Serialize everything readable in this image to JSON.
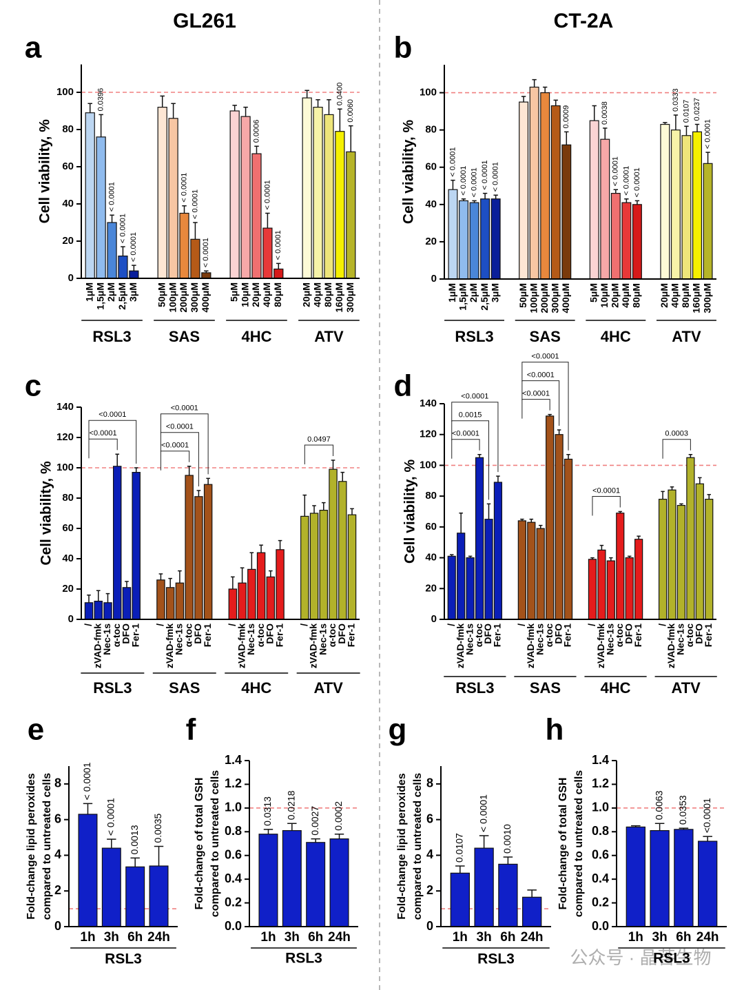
{
  "chart_data": [
    {
      "type": "bar",
      "panel": "a",
      "title": "GL261",
      "ylabel": [
        "Cell viability, %"
      ],
      "ylim": [
        0,
        115
      ],
      "yticks": [
        0,
        20,
        40,
        60,
        80,
        100
      ],
      "ref_line": 100,
      "groups": [
        {
          "label": "RSL3",
          "categories": [
            "1μM",
            "1,5μM",
            "2μM",
            "2,5μM",
            "3μM"
          ],
          "values": [
            89,
            76,
            30,
            12,
            4
          ],
          "errors": [
            5,
            12,
            4,
            5,
            3
          ],
          "colors": [
            "#bcd6f2",
            "#8fbbee",
            "#4a86d8",
            "#1d4fc4",
            "#0a1f9a"
          ],
          "pvalues": [
            null,
            "0.0396",
            "< 0.0001",
            "< 0.0001",
            "< 0.0001"
          ]
        },
        {
          "label": "SAS",
          "categories": [
            "50μM",
            "100μM",
            "200μM",
            "300μM",
            "400μM"
          ],
          "values": [
            92,
            86,
            35,
            21,
            3
          ],
          "errors": [
            6,
            8,
            4,
            9,
            1
          ],
          "colors": [
            "#fde6d4",
            "#f7c6a3",
            "#e8883d",
            "#b55a18",
            "#7a3a0c"
          ],
          "pvalues": [
            null,
            null,
            "< 0.0001",
            "< 0.0001",
            "< 0.0001"
          ]
        },
        {
          "label": "4HC",
          "categories": [
            "5μM",
            "10μM",
            "20μM",
            "40μM",
            "80μM"
          ],
          "values": [
            90,
            87,
            67,
            27,
            5
          ],
          "errors": [
            3,
            5,
            4,
            8,
            3
          ],
          "colors": [
            "#fbd3d3",
            "#f7a8a8",
            "#f07070",
            "#e83838",
            "#d61a1a"
          ],
          "pvalues": [
            null,
            null,
            "0.0006",
            "< 0.0001",
            "< 0.0001"
          ]
        },
        {
          "label": "ATV",
          "categories": [
            "20μM",
            "40μM",
            "80μM",
            "160μM",
            "300μM"
          ],
          "values": [
            97,
            92,
            88,
            79,
            68
          ],
          "errors": [
            4,
            4,
            8,
            12,
            14
          ],
          "colors": [
            "#fdfad6",
            "#f7f3a8",
            "#eee57a",
            "#f5f000",
            "#b6b428"
          ],
          "pvalues": [
            null,
            null,
            null,
            "0.0400",
            "0.0060"
          ]
        }
      ]
    },
    {
      "type": "bar",
      "panel": "b",
      "title": "CT-2A",
      "ylabel": [
        "Cell viability, %"
      ],
      "ylim": [
        0,
        115
      ],
      "yticks": [
        0,
        20,
        40,
        60,
        80,
        100
      ],
      "ref_line": 100,
      "groups": [
        {
          "label": "RSL3",
          "categories": [
            "1μM",
            "1,5μM",
            "2μM",
            "2,5μM",
            "3μM"
          ],
          "values": [
            48,
            42,
            41,
            43,
            43
          ],
          "errors": [
            5,
            1,
            1,
            3,
            2
          ],
          "colors": [
            "#bcd6f2",
            "#8fbbee",
            "#4a86d8",
            "#1d4fc4",
            "#0a1f9a"
          ],
          "pvalues": [
            "< 0.0001",
            "< 0.0001",
            "< 0.0001",
            "< 0.0001",
            "< 0.0001"
          ]
        },
        {
          "label": "SAS",
          "categories": [
            "50μM",
            "100μM",
            "200μM",
            "300μM",
            "400μM"
          ],
          "values": [
            95,
            103,
            100,
            93,
            72
          ],
          "errors": [
            3,
            4,
            3,
            3,
            7
          ],
          "colors": [
            "#fde6d4",
            "#f7c6a3",
            "#e8883d",
            "#b55a18",
            "#7a3a0c"
          ],
          "pvalues": [
            null,
            null,
            null,
            null,
            "0.0009"
          ]
        },
        {
          "label": "4HC",
          "categories": [
            "5μM",
            "10μM",
            "20μM",
            "40μM",
            "80μM"
          ],
          "values": [
            85,
            75,
            46,
            41,
            40
          ],
          "errors": [
            8,
            6,
            2,
            2,
            2
          ],
          "colors": [
            "#fbd3d3",
            "#f7a8a8",
            "#f07070",
            "#e83838",
            "#d61a1a"
          ],
          "pvalues": [
            null,
            "0.0038",
            "< 0.0001",
            "< 0.0001",
            "< 0.0001"
          ]
        },
        {
          "label": "ATV",
          "categories": [
            "20μM",
            "40μM",
            "80μM",
            "160μM",
            "300μM"
          ],
          "values": [
            83,
            80,
            77,
            79,
            62
          ],
          "errors": [
            1,
            8,
            5,
            4,
            6
          ],
          "colors": [
            "#fdfad6",
            "#f7f3a8",
            "#eee57a",
            "#f5f000",
            "#b6b428"
          ],
          "pvalues": [
            null,
            "0.0333",
            "0.0107",
            "0.0237",
            "< 0.0001"
          ]
        }
      ]
    },
    {
      "type": "bar",
      "panel": "c",
      "ylabel": [
        "Cell viability, %"
      ],
      "ylim": [
        0,
        140
      ],
      "yticks": [
        0,
        20,
        40,
        60,
        80,
        100,
        120,
        140
      ],
      "ref_line": 100,
      "groups": [
        {
          "label": "RSL3",
          "categories": [
            "/",
            "zVAD-fmk",
            "Nec-1s",
            "α-toc",
            "DFO",
            "Fer-1"
          ],
          "values": [
            11,
            12,
            11,
            101,
            21,
            97
          ],
          "errors": [
            5,
            7,
            6,
            8,
            4,
            3
          ],
          "color": "#0b1fb8",
          "bracket_labels": [
            null,
            null,
            null,
            "<0.0001",
            null,
            "<0.0001"
          ]
        },
        {
          "label": "SAS",
          "categories": [
            "/",
            "zVAD-fmk",
            "Nec-1s",
            "α-toc",
            "DFO",
            "Fer-1"
          ],
          "values": [
            26,
            21,
            24,
            95,
            81,
            89
          ],
          "errors": [
            4,
            6,
            8,
            6,
            4,
            4
          ],
          "color": "#a3521a",
          "bracket_labels": [
            null,
            null,
            null,
            "<0.0001",
            "<0.0001",
            "<0.0001"
          ]
        },
        {
          "label": "4HC",
          "categories": [
            "/",
            "zVAD-fmk",
            "Nec-1s",
            "α-toc",
            "DFO",
            "Fer-1"
          ],
          "values": [
            20,
            24,
            33,
            44,
            28,
            46
          ],
          "errors": [
            8,
            10,
            11,
            5,
            4,
            6
          ],
          "color": "#e41c1c",
          "bracket_labels": [
            null,
            null,
            null,
            null,
            null,
            null
          ]
        },
        {
          "label": "ATV",
          "categories": [
            "/",
            "zVAD-fmk",
            "Nec-1s",
            "α-toc",
            "DFO",
            "Fer-1"
          ],
          "values": [
            68,
            70,
            72,
            99,
            91,
            69
          ],
          "errors": [
            14,
            5,
            5,
            6,
            6,
            4
          ],
          "color": "#b2b22a",
          "bracket_labels": [
            null,
            null,
            null,
            "0.0497",
            null,
            null
          ]
        }
      ]
    },
    {
      "type": "bar",
      "panel": "d",
      "ylabel": [
        "Cell viability, %"
      ],
      "ylim": [
        0,
        140
      ],
      "yticks": [
        0,
        20,
        40,
        60,
        80,
        100,
        120,
        140
      ],
      "ref_line": 100,
      "groups": [
        {
          "label": "RSL3",
          "categories": [
            "/",
            "zVAD-fmk",
            "Nec-1s",
            "α-toc",
            "DFO",
            "Fer-1"
          ],
          "values": [
            41,
            56,
            40,
            105,
            65,
            89
          ],
          "errors": [
            1,
            13,
            1,
            2,
            10,
            4
          ],
          "color": "#0b1fb8",
          "bracket_labels": [
            null,
            null,
            null,
            "<0.0001",
            "0.0015",
            "<0.0001"
          ]
        },
        {
          "label": "SAS",
          "categories": [
            "/",
            "zVAD-fmk",
            "Nec-1s",
            "α-toc",
            "DFO",
            "Fer-1"
          ],
          "values": [
            64,
            63,
            59,
            132,
            120,
            104
          ],
          "errors": [
            1,
            2,
            2,
            1,
            3,
            3
          ],
          "color": "#a3521a",
          "bracket_labels": [
            null,
            null,
            null,
            "<0.0001",
            "<0.0001",
            "<0.0001"
          ]
        },
        {
          "label": "4HC",
          "categories": [
            "/",
            "zVAD-fmk",
            "Nec-1s",
            "α-toc",
            "DFO",
            "Fer-1"
          ],
          "values": [
            39,
            45,
            38,
            69,
            40,
            52
          ],
          "errors": [
            1,
            3,
            2,
            1,
            1,
            2
          ],
          "color": "#e41c1c",
          "bracket_labels": [
            null,
            null,
            null,
            "<0.0001",
            null,
            null
          ]
        },
        {
          "label": "ATV",
          "categories": [
            "/",
            "zVAD-fmk",
            "Nec-1s",
            "α-toc",
            "DFO",
            "Fer-1"
          ],
          "values": [
            78,
            84,
            74,
            105,
            88,
            78
          ],
          "errors": [
            5,
            2,
            1,
            2,
            4,
            3
          ],
          "color": "#b2b22a",
          "bracket_labels": [
            null,
            null,
            null,
            "0.0003",
            null,
            null
          ]
        }
      ]
    },
    {
      "type": "bar",
      "panel": "e",
      "ylabel": [
        "Fold-change lipid peroxides",
        "compared to untreated cells"
      ],
      "ylim": [
        0,
        9
      ],
      "yticks": [
        0,
        2,
        4,
        6,
        8
      ],
      "ref_line": 1,
      "groups": [
        {
          "label": "RSL3",
          "categories": [
            "1h",
            "3h",
            "6h",
            "24h"
          ],
          "values": [
            6.3,
            4.4,
            3.35,
            3.4
          ],
          "errors": [
            0.6,
            0.5,
            0.5,
            1.1
          ],
          "color": "#1020c8",
          "pvalues": [
            "< 0.0001",
            "< 0.0001",
            "0.0013",
            "0.0035"
          ]
        }
      ]
    },
    {
      "type": "bar",
      "panel": "f",
      "ylabel": [
        "Fold-change of total GSH",
        "compared to untreated cells"
      ],
      "ylim": [
        0,
        1.4
      ],
      "yticks": [
        {
          "value": 0,
          "label": "0.0"
        },
        {
          "value": 0.2,
          "label": "0.2"
        },
        {
          "value": 0.4,
          "label": "0.4"
        },
        {
          "value": 0.6,
          "label": "0.6"
        },
        {
          "value": 0.8,
          "label": "0.8"
        },
        {
          "value": 1,
          "label": "1.0"
        },
        {
          "value": 1.2,
          "label": "1.2"
        },
        {
          "value": 1.4,
          "label": "1.4"
        }
      ],
      "ref_line": 1,
      "groups": [
        {
          "label": "RSL3",
          "categories": [
            "1h",
            "3h",
            "6h",
            "24h"
          ],
          "values": [
            0.78,
            0.81,
            0.71,
            0.74
          ],
          "errors": [
            0.04,
            0.06,
            0.03,
            0.04
          ],
          "color": "#1020c8",
          "pvalues": [
            "0.0313",
            "0.0218",
            "0.0027",
            "0.0002"
          ]
        }
      ]
    },
    {
      "type": "bar",
      "panel": "g",
      "ylabel": [
        "Fold-change lipid peroxides",
        "compared to untreated cells"
      ],
      "ylim": [
        0,
        9
      ],
      "yticks": [
        0,
        2,
        4,
        6,
        8
      ],
      "ref_line": 1,
      "groups": [
        {
          "label": "RSL3",
          "categories": [
            "1h",
            "3h",
            "6h",
            "24h"
          ],
          "values": [
            3.0,
            4.4,
            3.5,
            1.65
          ],
          "errors": [
            0.4,
            0.7,
            0.4,
            0.4
          ],
          "color": "#1020c8",
          "pvalues": [
            "0.0107",
            "< 0.0001",
            "0.0010",
            null
          ]
        }
      ]
    },
    {
      "type": "bar",
      "panel": "h",
      "ylabel": [
        "Fold-change of total GSH",
        "compared to untreated cells"
      ],
      "ylim": [
        0,
        1.4
      ],
      "yticks": [
        {
          "value": 0,
          "label": "0.0"
        },
        {
          "value": 0.2,
          "label": "0.2"
        },
        {
          "value": 0.4,
          "label": "0.4"
        },
        {
          "value": 0.6,
          "label": "0.6"
        },
        {
          "value": 0.8,
          "label": "0.8"
        },
        {
          "value": 1,
          "label": "1.0"
        },
        {
          "value": 1.2,
          "label": "1.2"
        },
        {
          "value": 1.4,
          "label": "1.4"
        }
      ],
      "ref_line": 1,
      "groups": [
        {
          "label": "RSL3",
          "categories": [
            "1h",
            "3h",
            "6h",
            "24h"
          ],
          "values": [
            0.84,
            0.81,
            0.82,
            0.72
          ],
          "errors": [
            0.01,
            0.06,
            0.01,
            0.04
          ],
          "color": "#1020c8",
          "pvalues": [
            null,
            "0.0063",
            "0.0353",
            "<0.0001"
          ]
        }
      ]
    }
  ],
  "watermark": "公众号 · 晶莕生物"
}
